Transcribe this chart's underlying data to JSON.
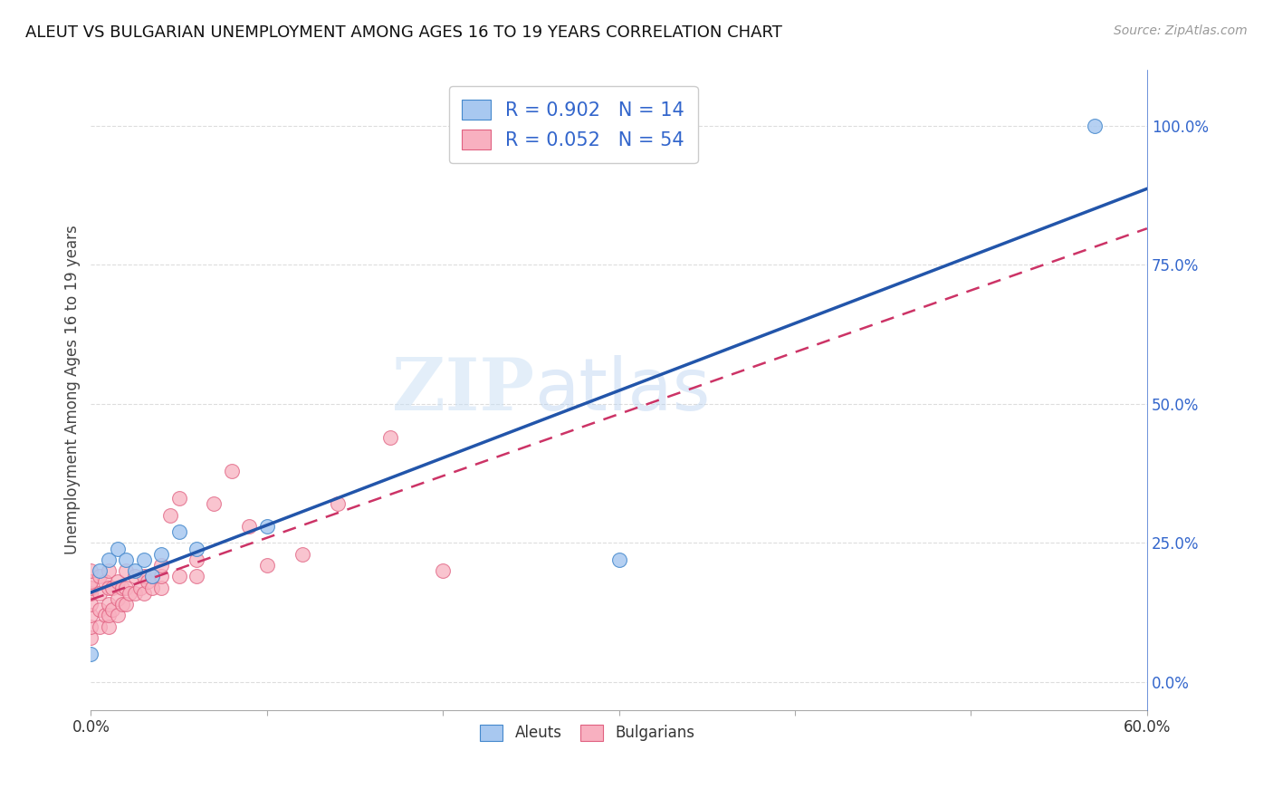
{
  "title": "ALEUT VS BULGARIAN UNEMPLOYMENT AMONG AGES 16 TO 19 YEARS CORRELATION CHART",
  "source_text": "Source: ZipAtlas.com",
  "ylabel": "Unemployment Among Ages 16 to 19 years",
  "watermark_zip": "ZIP",
  "watermark_atlas": "atlas",
  "xlim": [
    0.0,
    0.6
  ],
  "ylim": [
    -0.05,
    1.1
  ],
  "aleuts_color": "#a8c8f0",
  "aleuts_edge_color": "#4488cc",
  "aleuts_line_color": "#2255aa",
  "bulgarians_color": "#f8b0c0",
  "bulgarians_edge_color": "#e06080",
  "bulgarians_line_color": "#cc3366",
  "legend_label1": "R = 0.902   N = 14",
  "legend_label2": "R = 0.052   N = 54",
  "legend_color": "#3366cc",
  "aleuts_x": [
    0.0,
    0.005,
    0.01,
    0.015,
    0.02,
    0.025,
    0.03,
    0.035,
    0.04,
    0.05,
    0.06,
    0.1,
    0.3,
    0.57
  ],
  "aleuts_y": [
    0.05,
    0.2,
    0.22,
    0.24,
    0.22,
    0.2,
    0.22,
    0.19,
    0.23,
    0.27,
    0.24,
    0.28,
    0.22,
    1.0
  ],
  "bulgarians_x": [
    0.0,
    0.0,
    0.0,
    0.0,
    0.0,
    0.0,
    0.0,
    0.0,
    0.005,
    0.005,
    0.005,
    0.005,
    0.008,
    0.008,
    0.01,
    0.01,
    0.01,
    0.01,
    0.01,
    0.012,
    0.012,
    0.015,
    0.015,
    0.015,
    0.018,
    0.018,
    0.02,
    0.02,
    0.02,
    0.022,
    0.025,
    0.025,
    0.028,
    0.03,
    0.03,
    0.032,
    0.035,
    0.035,
    0.04,
    0.04,
    0.04,
    0.045,
    0.05,
    0.05,
    0.06,
    0.06,
    0.07,
    0.08,
    0.09,
    0.1,
    0.12,
    0.14,
    0.17,
    0.2
  ],
  "bulgarians_y": [
    0.08,
    0.1,
    0.12,
    0.14,
    0.16,
    0.17,
    0.18,
    0.2,
    0.1,
    0.13,
    0.16,
    0.19,
    0.12,
    0.18,
    0.1,
    0.12,
    0.14,
    0.17,
    0.2,
    0.13,
    0.17,
    0.12,
    0.15,
    0.18,
    0.14,
    0.17,
    0.14,
    0.17,
    0.2,
    0.16,
    0.16,
    0.19,
    0.17,
    0.16,
    0.19,
    0.18,
    0.17,
    0.19,
    0.17,
    0.19,
    0.21,
    0.3,
    0.19,
    0.33,
    0.19,
    0.22,
    0.32,
    0.38,
    0.28,
    0.21,
    0.23,
    0.32,
    0.44,
    0.2
  ],
  "background_color": "#ffffff",
  "grid_color": "#dddddd",
  "right_axis_color": "#3366cc",
  "bottom_legend_labels": [
    "Aleuts",
    "Bulgarians"
  ]
}
